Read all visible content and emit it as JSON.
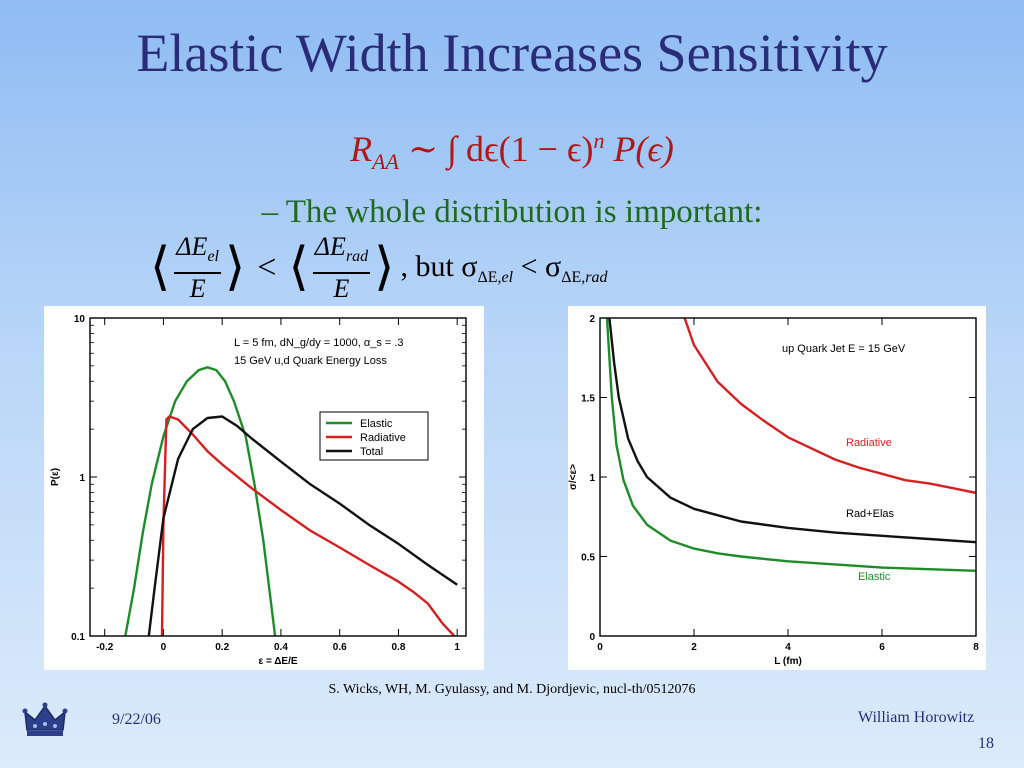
{
  "slide": {
    "title": "Elastic Width Increases Sensitivity",
    "formula": {
      "lhs": "R",
      "lhs_sub": "AA",
      "rhs": "∼ ∫ dϵ(1 − ϵ)",
      "exp": "n",
      "tail": " P(ϵ)"
    },
    "bullet": "– The whole distribution is important:",
    "ineq": {
      "num_left": "ΔE",
      "num_left_sub": "el",
      "num_right": "ΔE",
      "num_right_sub": "rad",
      "den": "E",
      "lt": "<",
      "but": ", but σ",
      "sub1_prefix": "ΔE,",
      "sub1_it": "el",
      "mid": " < σ",
      "sub2_prefix": "ΔE,",
      "sub2_it": "rad"
    },
    "reference": "S. Wicks, WH, M. Gyulassy, and M. Djordjevic, nucl-th/0512076",
    "date": "9/22/06",
    "author": "William Horowitz",
    "page_number": "18",
    "logo": "crown-icon"
  },
  "chart_data": [
    {
      "type": "line",
      "title": "",
      "annotation": [
        "L = 5 fm, dN_g/dy = 1000, α_s = .3",
        "15 GeV u,d Quark Energy Loss"
      ],
      "xlabel": "ε = ΔE/E",
      "ylabel": "P(ε)",
      "xlim": [
        -0.25,
        1.03
      ],
      "ylim": [
        0.1,
        10
      ],
      "yscale": "log",
      "xticks": [
        "-0.2",
        "0",
        "0.2",
        "0.4",
        "0.6",
        "0.8",
        "1"
      ],
      "xtick_values": [
        -0.2,
        0,
        0.2,
        0.4,
        0.6,
        0.8,
        1
      ],
      "yticks": [
        "0.1",
        "1",
        "10"
      ],
      "ytick_values": [
        0.1,
        1,
        10
      ],
      "legend_position": "middle-right",
      "series": [
        {
          "name": "Elastic",
          "color": "#1f8c2a",
          "x": [
            -0.13,
            -0.1,
            -0.07,
            -0.04,
            0,
            0.04,
            0.08,
            0.12,
            0.15,
            0.18,
            0.21,
            0.24,
            0.28,
            0.31,
            0.34,
            0.36,
            0.38
          ],
          "y": [
            0.1,
            0.2,
            0.45,
            0.9,
            1.8,
            3.0,
            4.0,
            4.7,
            4.9,
            4.7,
            4.0,
            3.0,
            1.8,
            0.9,
            0.4,
            0.2,
            0.1
          ]
        },
        {
          "name": "Radiative",
          "color": "#d42020",
          "x": [
            -0.005,
            0,
            0.01,
            0.02,
            0.05,
            0.1,
            0.15,
            0.2,
            0.3,
            0.4,
            0.5,
            0.6,
            0.7,
            0.8,
            0.85,
            0.9,
            0.95,
            0.99
          ],
          "y": [
            0.1,
            0.5,
            2.3,
            2.4,
            2.3,
            1.85,
            1.45,
            1.2,
            0.85,
            0.62,
            0.46,
            0.36,
            0.28,
            0.22,
            0.19,
            0.16,
            0.12,
            0.1
          ]
        },
        {
          "name": "Total",
          "color": "#111111",
          "x": [
            -0.05,
            -0.03,
            0,
            0.05,
            0.1,
            0.15,
            0.2,
            0.25,
            0.3,
            0.4,
            0.5,
            0.6,
            0.7,
            0.8,
            0.9,
            1.0
          ],
          "y": [
            0.1,
            0.2,
            0.55,
            1.3,
            2.0,
            2.35,
            2.4,
            2.1,
            1.75,
            1.25,
            0.9,
            0.68,
            0.5,
            0.38,
            0.28,
            0.21
          ]
        }
      ]
    },
    {
      "type": "line",
      "title": "up Quark Jet  E = 15 GeV",
      "xlabel": "L (fm)",
      "ylabel": "σ/<ε>",
      "xlim": [
        0,
        8
      ],
      "ylim": [
        0,
        2
      ],
      "xticks": [
        "0",
        "2",
        "4",
        "6",
        "8"
      ],
      "xtick_values": [
        0,
        2,
        4,
        6,
        8
      ],
      "yticks": [
        "0",
        "0.5",
        "1",
        "1.5",
        "2"
      ],
      "ytick_values": [
        0,
        0.5,
        1,
        1.5,
        2
      ],
      "series": [
        {
          "name": "Radiative",
          "color": "#d42020",
          "x": [
            1.8,
            2,
            2.5,
            3,
            3.5,
            4,
            4.5,
            5,
            5.5,
            6,
            6.5,
            7,
            7.5,
            8
          ],
          "y": [
            2.0,
            1.83,
            1.6,
            1.46,
            1.35,
            1.25,
            1.18,
            1.11,
            1.06,
            1.02,
            0.98,
            0.96,
            0.93,
            0.9
          ]
        },
        {
          "name": "Rad+Elas",
          "color": "#111111",
          "x": [
            0.2,
            0.3,
            0.4,
            0.6,
            0.8,
            1,
            1.5,
            2,
            2.5,
            3,
            4,
            5,
            6,
            7,
            8
          ],
          "y": [
            2.0,
            1.72,
            1.5,
            1.24,
            1.1,
            1.0,
            0.87,
            0.8,
            0.76,
            0.72,
            0.68,
            0.65,
            0.63,
            0.61,
            0.59
          ]
        },
        {
          "name": "Elastic",
          "color": "#1f8c2a",
          "x": [
            0.15,
            0.25,
            0.35,
            0.5,
            0.7,
            1,
            1.5,
            2,
            2.5,
            3,
            4,
            5,
            6,
            7,
            8
          ],
          "y": [
            2.0,
            1.5,
            1.2,
            0.98,
            0.82,
            0.7,
            0.6,
            0.55,
            0.52,
            0.5,
            0.47,
            0.45,
            0.43,
            0.42,
            0.41
          ]
        }
      ]
    }
  ]
}
